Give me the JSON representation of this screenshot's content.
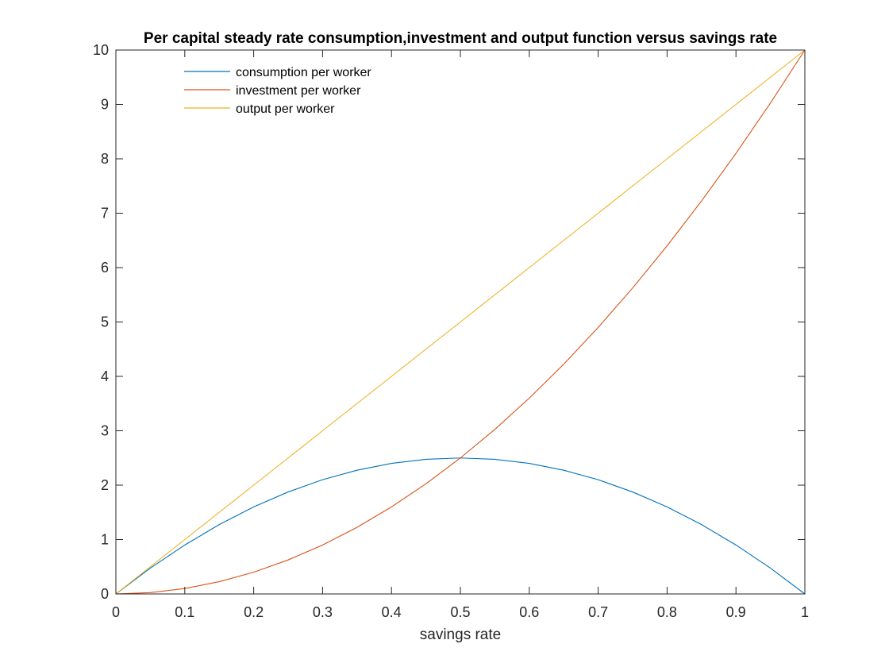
{
  "chart_data": {
    "type": "line",
    "title": "Per capital steady rate consumption,investment and output function versus savings rate",
    "xlabel": "savings rate",
    "ylabel": "",
    "xlim": [
      0,
      1
    ],
    "ylim": [
      0,
      10
    ],
    "xticks": [
      0,
      0.1,
      0.2,
      0.3,
      0.4,
      0.5,
      0.6,
      0.7,
      0.8,
      0.9,
      1
    ],
    "xtick_labels": [
      "0",
      "0.1",
      "0.2",
      "0.3",
      "0.4",
      "0.5",
      "0.6",
      "0.7",
      "0.8",
      "0.9",
      "1"
    ],
    "yticks": [
      0,
      1,
      2,
      3,
      4,
      5,
      6,
      7,
      8,
      9,
      10
    ],
    "ytick_labels": [
      "0",
      "1",
      "2",
      "3",
      "4",
      "5",
      "6",
      "7",
      "8",
      "9",
      "10"
    ],
    "grid": false,
    "legend_position": "top-left",
    "x": [
      0,
      0.05,
      0.1,
      0.15,
      0.2,
      0.25,
      0.3,
      0.35,
      0.4,
      0.45,
      0.5,
      0.55,
      0.6,
      0.65,
      0.7,
      0.75,
      0.8,
      0.85,
      0.9,
      0.95,
      1
    ],
    "series": [
      {
        "name": "consumption per worker",
        "color": "#0072BD",
        "values": [
          0,
          0.475,
          0.9,
          1.275,
          1.6,
          1.875,
          2.1,
          2.275,
          2.4,
          2.475,
          2.5,
          2.475,
          2.4,
          2.275,
          2.1,
          1.875,
          1.6,
          1.275,
          0.9,
          0.475,
          0
        ]
      },
      {
        "name": "investment per worker",
        "color": "#D95319",
        "values": [
          0,
          0.025,
          0.1,
          0.225,
          0.4,
          0.625,
          0.9,
          1.225,
          1.6,
          2.025,
          2.5,
          3.025,
          3.6,
          4.225,
          4.9,
          5.625,
          6.4,
          7.225,
          8.1,
          9.025,
          10
        ]
      },
      {
        "name": "output per worker",
        "color": "#EDB120",
        "values": [
          0,
          0.5,
          1,
          1.5,
          2,
          2.5,
          3,
          3.5,
          4,
          4.5,
          5,
          5.5,
          6,
          6.5,
          7,
          7.5,
          8,
          8.5,
          9,
          9.5,
          10
        ]
      }
    ]
  }
}
